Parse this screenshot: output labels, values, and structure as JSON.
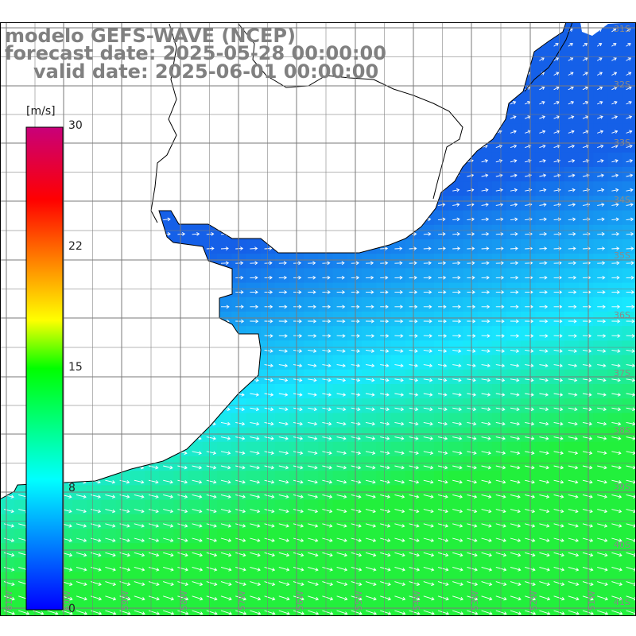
{
  "title": {
    "line1": "modelo GEFS-WAVE (NCEP)",
    "line2": "forecast date: 2025-05-28 00:00:00",
    "line3": "valid date: 2025-06-01 00:00:00"
  },
  "colorbar": {
    "unit": "[m/s]",
    "ticks": [
      "30",
      "22",
      "15",
      "8",
      "0"
    ],
    "min": 0,
    "max": 30
  },
  "latitude_labels": [
    "31S",
    "32S",
    "33S",
    "34S",
    "35S",
    "36S",
    "37S",
    "38S",
    "39S",
    "40S",
    "41S"
  ],
  "longitude_labels": [
    "61W",
    "60W",
    "59W",
    "58W",
    "57W",
    "56W",
    "55W",
    "54W",
    "53W",
    "52W",
    "51W"
  ],
  "colors": {
    "blue_low": "#1560e8",
    "cyan_mid": "#18e8ff",
    "green_high": "#22f03c",
    "land": "#ffffff",
    "grid": "#7a7a7a",
    "arrows": "#ffffff"
  }
}
